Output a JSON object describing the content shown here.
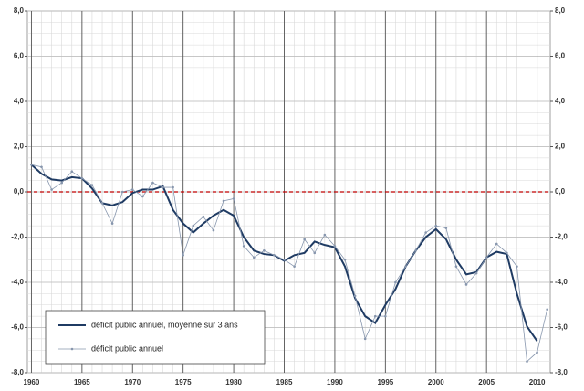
{
  "chart_data": {
    "type": "line",
    "x": [
      1960,
      1961,
      1962,
      1963,
      1964,
      1965,
      1966,
      1967,
      1968,
      1969,
      1970,
      1971,
      1972,
      1973,
      1974,
      1975,
      1976,
      1977,
      1978,
      1979,
      1980,
      1981,
      1982,
      1983,
      1984,
      1985,
      1986,
      1987,
      1988,
      1989,
      1990,
      1991,
      1992,
      1993,
      1994,
      1995,
      1996,
      1997,
      1998,
      1999,
      2000,
      2001,
      2002,
      2003,
      2004,
      2005,
      2006,
      2007,
      2008,
      2009,
      2010,
      2011
    ],
    "series": [
      {
        "name": "déficit public annuel, moyenné sur 3 ans",
        "color": "#1f3b63",
        "width": 2,
        "values": [
          1.2,
          0.8,
          0.55,
          0.5,
          0.65,
          0.6,
          0.15,
          -0.5,
          -0.6,
          -0.45,
          -0.05,
          0.1,
          0.1,
          0.25,
          -0.8,
          -1.4,
          -1.8,
          -1.4,
          -1.05,
          -0.8,
          -1.05,
          -2.0,
          -2.6,
          -2.75,
          -2.8,
          -3.05,
          -2.8,
          -2.7,
          -2.2,
          -2.35,
          -2.45,
          -3.3,
          -4.7,
          -5.5,
          -5.8,
          -5.0,
          -4.3,
          -3.3,
          -2.6,
          -2.0,
          -1.65,
          -2.1,
          -3.0,
          -3.65,
          -3.55,
          -2.9,
          -2.65,
          -2.75,
          -4.5,
          -5.95,
          -6.6,
          null
        ]
      },
      {
        "name": "déficit public annuel",
        "color": "#8796ad",
        "width": 0.8,
        "markers": true,
        "values": [
          1.2,
          1.1,
          0.1,
          0.4,
          0.9,
          0.6,
          0.3,
          -0.5,
          -1.4,
          0.0,
          0.1,
          -0.2,
          0.4,
          0.2,
          0.2,
          -2.8,
          -1.5,
          -1.1,
          -1.7,
          -0.4,
          -0.3,
          -2.4,
          -2.9,
          -2.6,
          -2.8,
          -3.0,
          -3.3,
          -2.1,
          -2.7,
          -1.9,
          -2.4,
          -3.0,
          -4.6,
          -6.5,
          -5.5,
          -5.5,
          -4.0,
          -3.3,
          -2.6,
          -1.8,
          -1.5,
          -1.6,
          -3.3,
          -4.1,
          -3.6,
          -2.9,
          -2.3,
          -2.7,
          -3.3,
          -7.5,
          -7.1,
          -5.2
        ]
      }
    ],
    "xlim": [
      1959.6,
      2011.3
    ],
    "xticks": [
      1960,
      1965,
      1970,
      1975,
      1980,
      1985,
      1990,
      1995,
      2000,
      2005,
      2010
    ],
    "ylim": [
      -8,
      8
    ],
    "yticks": [
      {
        "value": -8,
        "label": "-8,0"
      },
      {
        "value": -6,
        "label": "-6,0"
      },
      {
        "value": -4,
        "label": "-4,0"
      },
      {
        "value": -2,
        "label": "-2,0"
      },
      {
        "value": 0,
        "label": "0,0"
      },
      {
        "value": 2,
        "label": "2,0"
      },
      {
        "value": 4,
        "label": "4,0"
      },
      {
        "value": 6,
        "label": "6,0"
      },
      {
        "value": 8,
        "label": "8,0"
      }
    ],
    "y2lim": [
      -8,
      8
    ],
    "y2ticks": [
      {
        "value": -8,
        "label": "-8,0"
      },
      {
        "value": -6,
        "label": "-6,0"
      },
      {
        "value": -4,
        "label": "-4,0"
      },
      {
        "value": -2,
        "label": "-2,0"
      },
      {
        "value": 0,
        "label": "0,0"
      },
      {
        "value": 2,
        "label": "2,0"
      },
      {
        "value": 4,
        "label": "4,0"
      },
      {
        "value": 6,
        "label": "6,0"
      },
      {
        "value": 8,
        "label": "8,0"
      }
    ],
    "reference_line": {
      "value": 0,
      "color": "#c00000"
    },
    "grid": true,
    "legend": "lower left"
  }
}
